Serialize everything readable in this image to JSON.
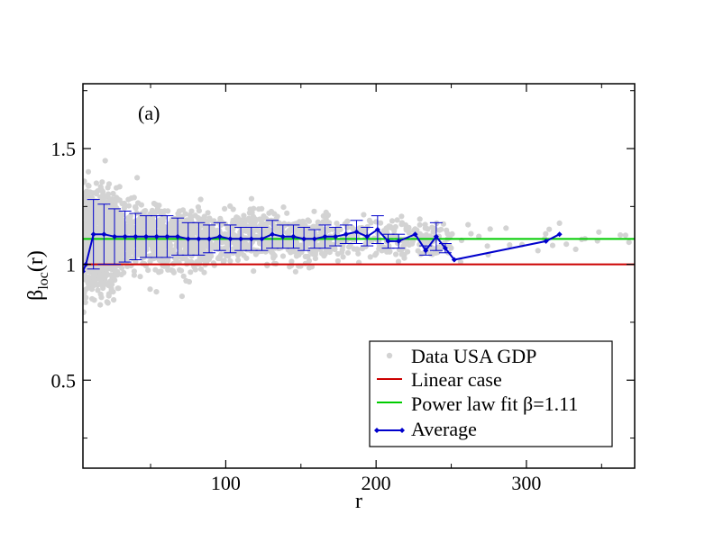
{
  "chart_data": {
    "type": "scatter",
    "panel_label": "(a)",
    "xlabel": "r",
    "ylabel": {
      "base": "β",
      "subscript": "loc",
      "suffix": "(r)"
    },
    "xlim": [
      5,
      372
    ],
    "ylim": [
      0.12,
      1.78
    ],
    "x_ticks": [
      100,
      200,
      300
    ],
    "y_ticks": [
      0.5,
      1,
      1.5
    ],
    "x_tick_labels": [
      "100",
      "200",
      "300"
    ],
    "y_tick_labels": [
      "0.5",
      "1",
      "1.5"
    ],
    "legend_position": "bottom-right",
    "legend": [
      {
        "label": "Data USA GDP",
        "marker": "dot",
        "color": "#d3d3d3"
      },
      {
        "label": "Linear case",
        "marker": "line",
        "color": "#cc0000"
      },
      {
        "label": "Power law fit β=1.11",
        "marker": "line",
        "color": "#00cc00"
      },
      {
        "label": "Average",
        "marker": "line-diamond",
        "color": "#0000cc"
      }
    ],
    "colors": {
      "scatter": "#d3d3d3",
      "linear": "#cc0000",
      "powerlaw": "#00cc00",
      "average": "#0000cc"
    },
    "reference_lines": [
      {
        "name": "Linear case",
        "y": 1.0
      },
      {
        "name": "Power law fit β=1.11",
        "y": 1.11
      }
    ],
    "series": [
      {
        "name": "Average",
        "x": [
          5,
          7,
          12,
          19,
          26,
          33,
          40,
          47,
          54,
          61,
          68,
          75,
          82,
          89,
          96,
          103,
          110,
          117,
          124,
          131,
          138,
          145,
          152,
          159,
          166,
          173,
          180,
          187,
          194,
          201,
          208,
          215,
          226,
          233,
          240,
          246,
          252,
          313,
          322
        ],
        "y": [
          0.97,
          1.0,
          1.13,
          1.13,
          1.12,
          1.12,
          1.12,
          1.12,
          1.12,
          1.12,
          1.12,
          1.11,
          1.11,
          1.11,
          1.12,
          1.11,
          1.11,
          1.11,
          1.11,
          1.13,
          1.12,
          1.12,
          1.11,
          1.11,
          1.12,
          1.12,
          1.13,
          1.14,
          1.12,
          1.15,
          1.1,
          1.1,
          1.13,
          1.06,
          1.12,
          1.07,
          1.02,
          1.1,
          1.13
        ],
        "err": [
          0,
          0,
          0.15,
          0.13,
          0.12,
          0.11,
          0.1,
          0.09,
          0.09,
          0.09,
          0.08,
          0.07,
          0.07,
          0.06,
          0.06,
          0.06,
          0.05,
          0.05,
          0.05,
          0.06,
          0.05,
          0.05,
          0.05,
          0.04,
          0.05,
          0.04,
          0.04,
          0.05,
          0.04,
          0.06,
          0.03,
          0.03,
          0,
          0.02,
          0.06,
          0.02,
          0,
          0,
          0
        ]
      }
    ]
  }
}
